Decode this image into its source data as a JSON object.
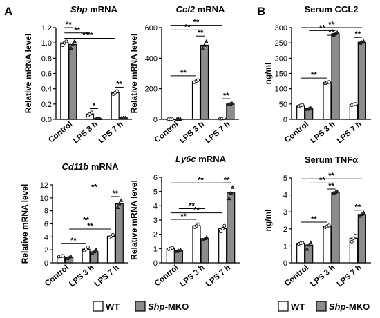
{
  "panel_letters": [
    "A",
    "B"
  ],
  "legend": {
    "items": [
      {
        "label": "WT",
        "color": "#ffffff"
      },
      {
        "label_italic": "Shp",
        "label_rest": "-MKO",
        "color": "#8c8c8c"
      }
    ]
  },
  "colors": {
    "wt": "#ffffff",
    "mko": "#8c8c8c",
    "stroke": "#000000"
  },
  "chart_data": [
    {
      "type": "bar",
      "title_italic": "Shp",
      "title_rest": " mRNA",
      "ylabel": "Relative mRNA level",
      "ylim": [
        0,
        1.2
      ],
      "yticks": [
        "0.0",
        "0.2",
        "0.4",
        "0.6",
        "0.8",
        "1.0",
        "1.2"
      ],
      "categories": [
        "Control",
        "LPS 3 h",
        "LPS 7 h"
      ],
      "series": [
        {
          "name": "WT",
          "values": [
            1.0,
            0.07,
            0.35
          ],
          "points": [
            [
              0.97,
              1.0,
              1.02
            ],
            [
              0.05,
              0.07,
              0.09
            ],
            [
              0.33,
              0.35,
              0.37
            ]
          ]
        },
        {
          "name": "Shp-MKO",
          "values": [
            0.98,
            0.01,
            0.02
          ],
          "points": [
            [
              0.93,
              0.98,
              1.02
            ],
            [
              0.01,
              0.01,
              0.01
            ],
            [
              0.02,
              0.02,
              0.02
            ]
          ]
        }
      ],
      "significance": [
        {
          "label": "**",
          "from": [
            0,
            0
          ],
          "to": [
            0,
            1
          ],
          "y": 1.2
        },
        {
          "label": "**",
          "from": [
            0,
            0
          ],
          "to": [
            1,
            0
          ],
          "y": 1.13
        },
        {
          "label": "**",
          "from": [
            0,
            1
          ],
          "to": [
            1,
            1
          ],
          "y": 1.06
        },
        {
          "label": "**",
          "from": [
            0,
            0
          ],
          "to": [
            2,
            0
          ],
          "y": 1.06
        },
        {
          "label": "*",
          "from": [
            1,
            0
          ],
          "to": [
            1,
            1
          ],
          "y": 0.14
        },
        {
          "label": "**",
          "from": [
            2,
            0
          ],
          "to": [
            2,
            1
          ],
          "y": 0.42
        }
      ]
    },
    {
      "type": "bar",
      "title_italic": "Ccl2",
      "title_rest": " mRNA",
      "ylabel": "Relative mRNA level",
      "ylim": [
        0,
        600
      ],
      "yticks": [
        "0",
        "200",
        "400",
        "600"
      ],
      "categories": [
        "Control",
        "LPS 3 h",
        "LPS 7 h"
      ],
      "series": [
        {
          "name": "WT",
          "values": [
            1,
            250,
            5
          ],
          "points": [
            [
              1,
              1,
              1
            ],
            [
              243,
              250,
              257
            ],
            [
              4,
              5,
              6
            ]
          ]
        },
        {
          "name": "Shp-MKO",
          "values": [
            1,
            485,
            100
          ],
          "points": [
            [
              1,
              1,
              1
            ],
            [
              462,
              485,
              508
            ],
            [
              96,
              100,
              104
            ]
          ]
        }
      ],
      "significance": [
        {
          "label": "**",
          "from": [
            0,
            0
          ],
          "to": [
            2,
            0
          ],
          "y": 615
        },
        {
          "label": "**",
          "from": [
            0,
            0
          ],
          "to": [
            1,
            1
          ],
          "y": 585
        },
        {
          "label": "**",
          "from": [
            1,
            0
          ],
          "to": [
            1,
            1
          ],
          "y": 545
        },
        {
          "label": "**",
          "from": [
            0,
            0
          ],
          "to": [
            1,
            0
          ],
          "y": 285
        },
        {
          "label": "**",
          "from": [
            2,
            0
          ],
          "to": [
            2,
            1
          ],
          "y": 135
        }
      ]
    },
    {
      "type": "bar",
      "title_italic": "Cd11b",
      "title_rest": " mRNA",
      "ylabel": "Relative mRNA level",
      "ylim": [
        0,
        12
      ],
      "yticks": [
        "0",
        "2",
        "4",
        "6",
        "8",
        "10",
        "12"
      ],
      "categories": [
        "Control",
        "LPS 3 h",
        "LPS 7 h"
      ],
      "series": [
        {
          "name": "WT",
          "values": [
            1.0,
            2.1,
            4.1
          ],
          "points": [
            [
              0.95,
              1.0,
              1.05
            ],
            [
              1.9,
              2.1,
              2.4
            ],
            [
              3.9,
              4.1,
              4.3
            ]
          ]
        },
        {
          "name": "Shp-MKO",
          "values": [
            0.8,
            1.7,
            9.1
          ],
          "points": [
            [
              0.65,
              0.8,
              0.95
            ],
            [
              1.4,
              1.7,
              2.0
            ],
            [
              8.5,
              9.1,
              9.6
            ]
          ]
        }
      ],
      "significance": [
        {
          "label": "**",
          "from": [
            0,
            1
          ],
          "to": [
            2,
            1
          ],
          "y": 11.2
        },
        {
          "label": "**",
          "from": [
            2,
            0
          ],
          "to": [
            2,
            1
          ],
          "y": 10.2
        },
        {
          "label": "**",
          "from": [
            0,
            0
          ],
          "to": [
            2,
            0
          ],
          "y": 6.1
        },
        {
          "label": "**",
          "from": [
            0,
            1
          ],
          "to": [
            2,
            0
          ],
          "y": 5.2
        },
        {
          "label": "**",
          "from": [
            0,
            0
          ],
          "to": [
            1,
            0
          ],
          "y": 3.0
        }
      ]
    },
    {
      "type": "bar",
      "title_italic": "Ly6c",
      "title_rest": " mRNA",
      "ylabel": "Relative mRNA level",
      "ylim": [
        0,
        6
      ],
      "yticks": [
        "0",
        "1",
        "2",
        "3",
        "4",
        "5",
        "6"
      ],
      "categories": [
        "Control",
        "LPS 3 h",
        "LPS 7 h"
      ],
      "series": [
        {
          "name": "WT",
          "values": [
            1.0,
            2.6,
            2.4
          ],
          "points": [
            [
              0.95,
              1.0,
              1.05
            ],
            [
              2.5,
              2.6,
              2.7
            ],
            [
              2.2,
              2.4,
              2.6
            ]
          ]
        },
        {
          "name": "Shp-MKO",
          "values": [
            0.85,
            1.7,
            4.9
          ],
          "points": [
            [
              0.8,
              0.85,
              0.9
            ],
            [
              1.6,
              1.7,
              1.8
            ],
            [
              4.5,
              4.9,
              5.3
            ]
          ]
        }
      ],
      "significance": [
        {
          "label": "**",
          "from": [
            0,
            0
          ],
          "to": [
            2,
            1
          ],
          "y": 5.6
        },
        {
          "label": "**",
          "from": [
            2,
            0
          ],
          "to": [
            2,
            1
          ],
          "y": 5.6
        },
        {
          "label": "**",
          "from": [
            0,
            1
          ],
          "to": [
            1,
            1
          ],
          "y": 3.8
        },
        {
          "label": "**",
          "from": [
            0,
            0
          ],
          "to": [
            2,
            0
          ],
          "y": 3.5
        },
        {
          "label": "**",
          "from": [
            0,
            0
          ],
          "to": [
            1,
            0
          ],
          "y": 3.05
        }
      ]
    },
    {
      "type": "bar",
      "title": "Serum CCL2",
      "ylabel": "ng/ml",
      "ylim": [
        0,
        300
      ],
      "yticks": [
        "0",
        "50",
        "100",
        "150",
        "200",
        "250",
        "300"
      ],
      "categories": [
        "Control",
        "LPS 3 h",
        "LPS 7 h"
      ],
      "series": [
        {
          "name": "WT",
          "values": [
            45,
            120,
            48
          ],
          "points": [
            [
              43,
              45,
              47
            ],
            [
              118,
              120,
              122
            ],
            [
              46,
              48,
              50
            ]
          ]
        },
        {
          "name": "Shp-MKO",
          "values": [
            35,
            280,
            252
          ],
          "points": [
            [
              33,
              35,
              37
            ],
            [
              276,
              280,
              284
            ],
            [
              249,
              252,
              255
            ]
          ]
        }
      ],
      "significance": [
        {
          "label": "**",
          "from": [
            0,
            0
          ],
          "to": [
            2,
            1
          ],
          "y": 300
        },
        {
          "label": "**",
          "from": [
            0,
            1
          ],
          "to": [
            1,
            1
          ],
          "y": 290
        },
        {
          "label": "**",
          "from": [
            1,
            0
          ],
          "to": [
            1,
            1
          ],
          "y": 275
        },
        {
          "label": "**",
          "from": [
            2,
            0
          ],
          "to": [
            2,
            1
          ],
          "y": 268
        },
        {
          "label": "**",
          "from": [
            0,
            0
          ],
          "to": [
            1,
            0
          ],
          "y": 135
        }
      ]
    },
    {
      "type": "bar",
      "title": "Serum TNFα",
      "ylabel": "ng/ml",
      "ylim": [
        0,
        5
      ],
      "yticks": [
        "0",
        "1",
        "2",
        "3",
        "4",
        "5"
      ],
      "categories": [
        "Control",
        "LPS 3 h",
        "LPS 7 h"
      ],
      "series": [
        {
          "name": "WT",
          "values": [
            1.15,
            2.15,
            1.45
          ],
          "points": [
            [
              1.12,
              1.15,
              1.18
            ],
            [
              2.1,
              2.15,
              2.2
            ],
            [
              1.25,
              1.45,
              1.6
            ]
          ]
        },
        {
          "name": "Shp-MKO",
          "values": [
            1.05,
            4.15,
            2.85
          ],
          "points": [
            [
              0.8,
              1.05,
              1.2
            ],
            [
              4.1,
              4.15,
              4.2
            ],
            [
              2.75,
              2.85,
              2.95
            ]
          ]
        }
      ],
      "significance": [
        {
          "label": "**",
          "from": [
            0,
            0
          ],
          "to": [
            2,
            1
          ],
          "y": 4.95
        },
        {
          "label": "**",
          "from": [
            0,
            1
          ],
          "to": [
            1,
            1
          ],
          "y": 4.7
        },
        {
          "label": "**",
          "from": [
            1,
            0
          ],
          "to": [
            1,
            1
          ],
          "y": 4.35
        },
        {
          "label": "**",
          "from": [
            2,
            0
          ],
          "to": [
            2,
            1
          ],
          "y": 3.1
        },
        {
          "label": "**",
          "from": [
            0,
            0
          ],
          "to": [
            1,
            0
          ],
          "y": 2.4
        }
      ]
    }
  ]
}
